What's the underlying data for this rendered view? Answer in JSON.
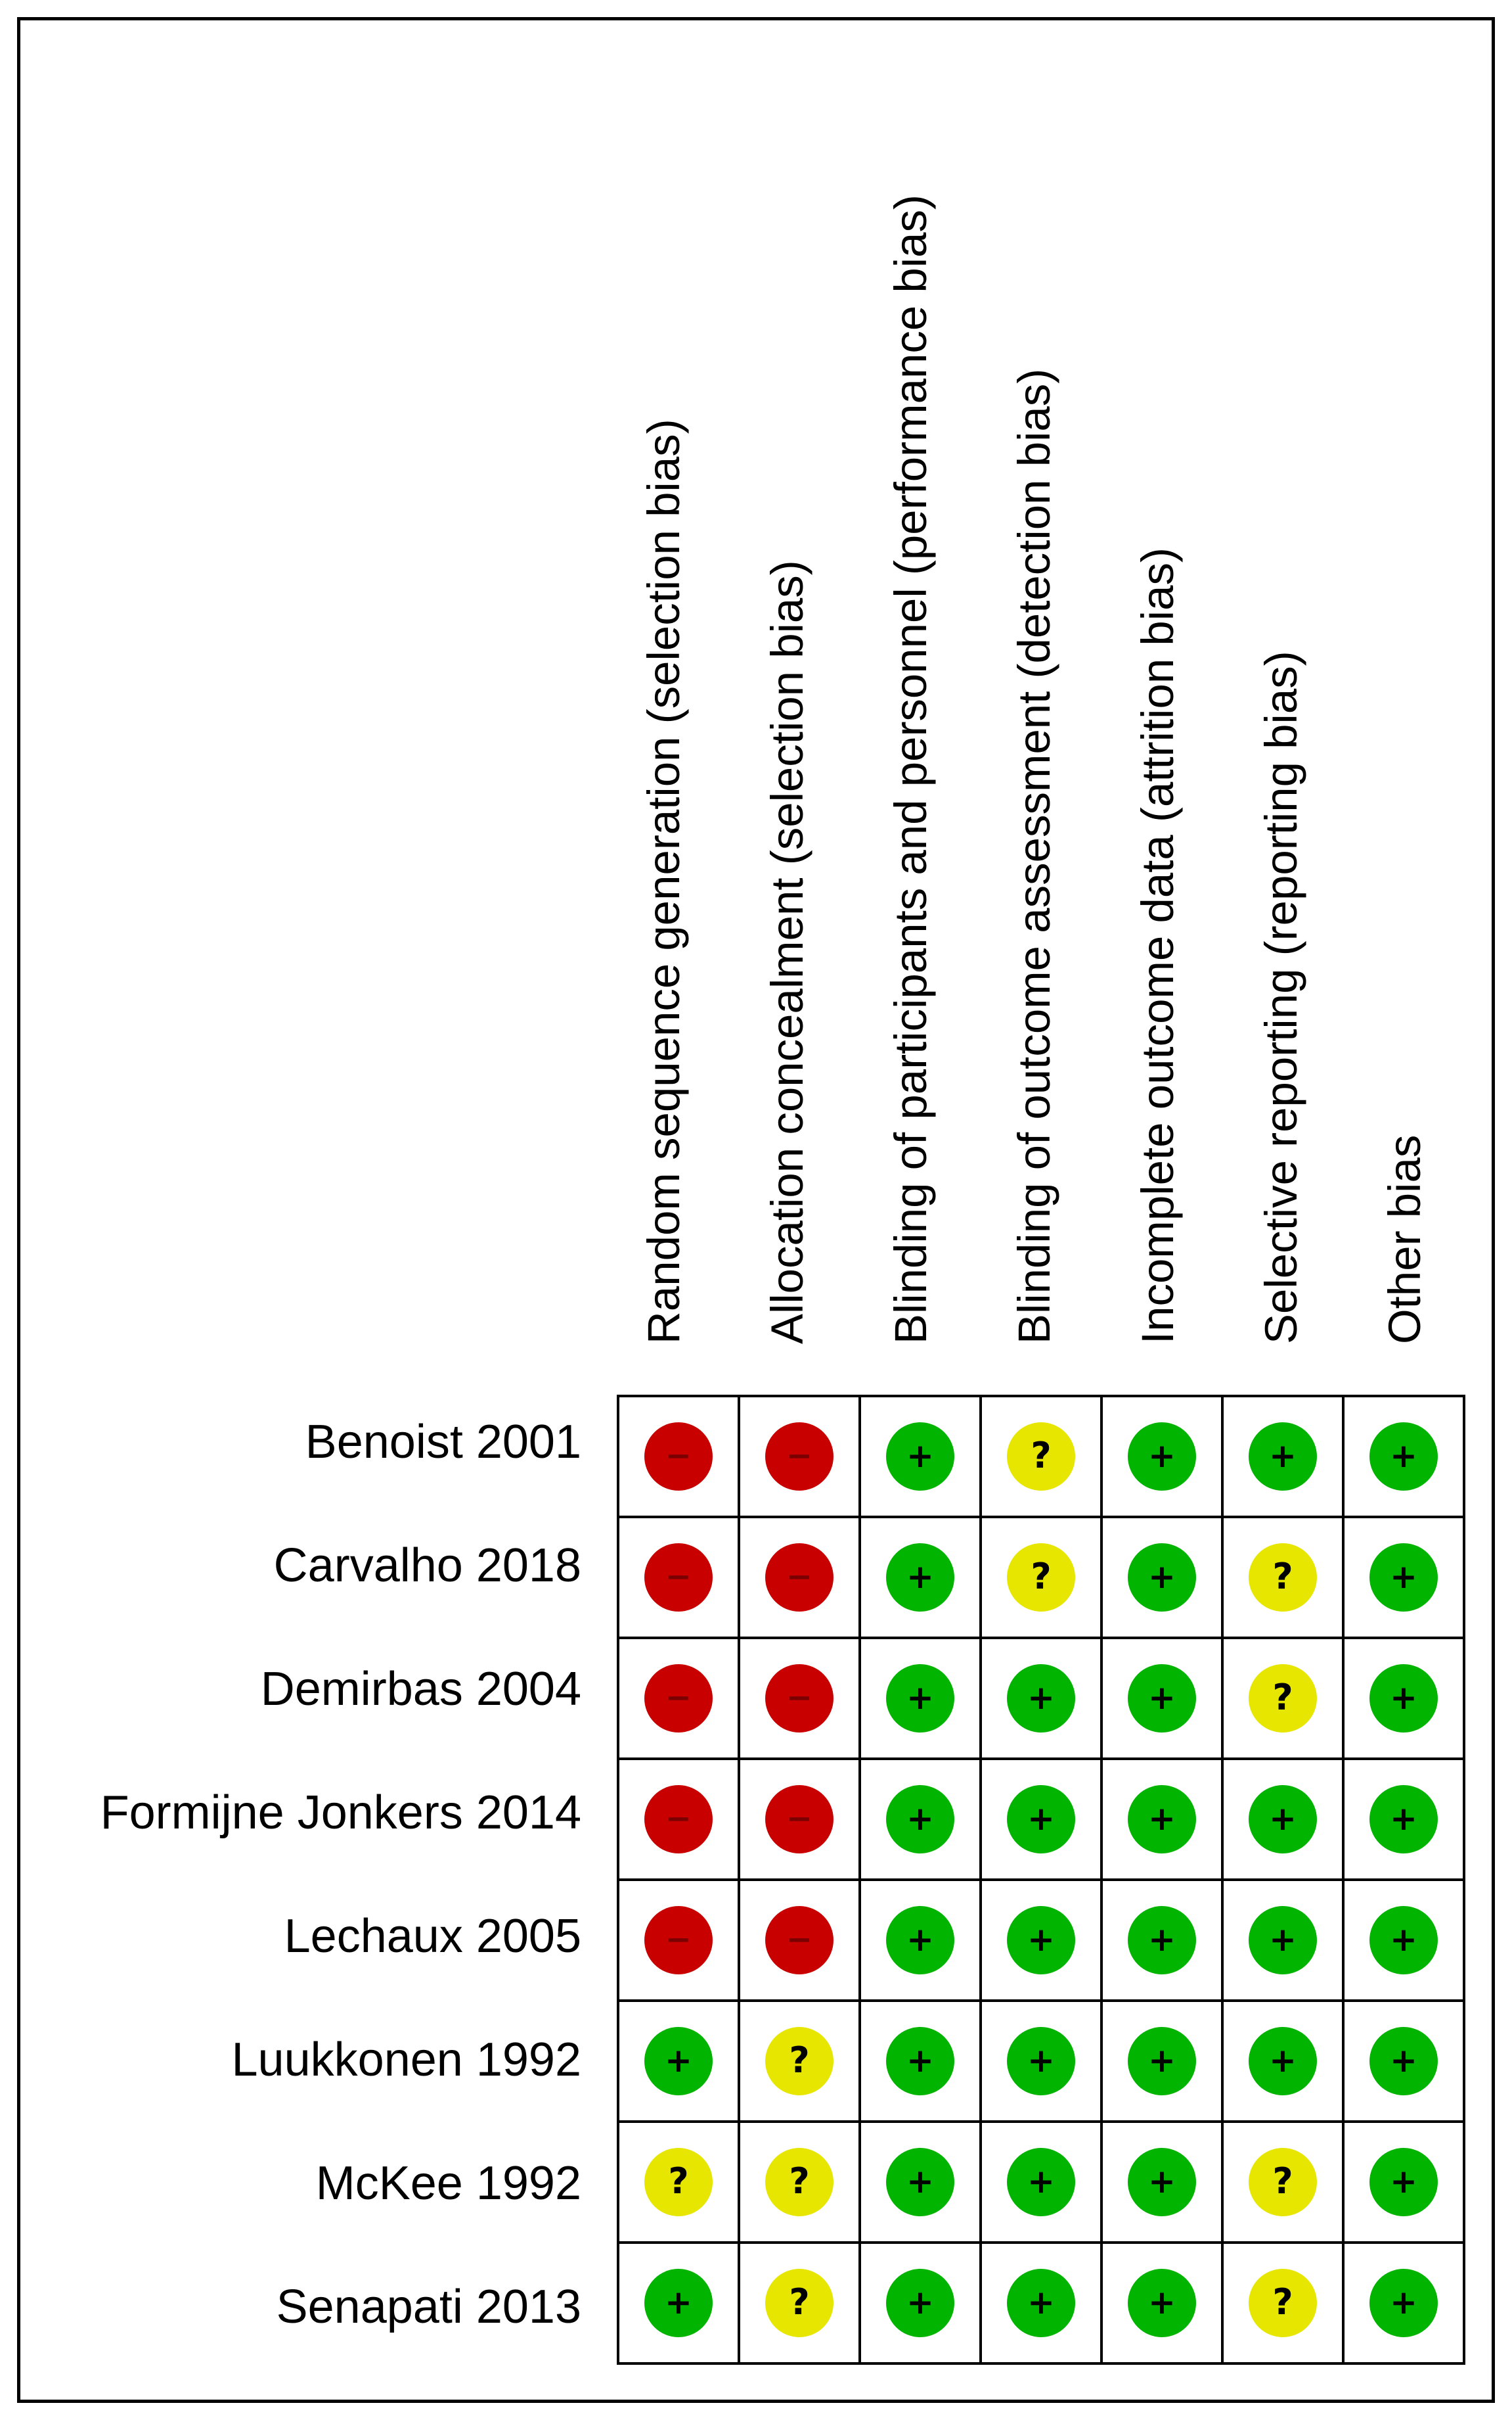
{
  "domains": [
    "Random sequence generation (selection bias)",
    "Allocation concealment (selection bias)",
    "Blinding of participants and personnel (performance bias)",
    "Blinding of outcome assessment (detection bias)",
    "Incomplete outcome data (attrition bias)",
    "Selective reporting (reporting bias)",
    "Other bias"
  ],
  "studies": [
    {
      "label": "Benoist 2001",
      "judgements": [
        "high",
        "high",
        "low",
        "unclear",
        "low",
        "low",
        "low"
      ]
    },
    {
      "label": "Carvalho 2018",
      "judgements": [
        "high",
        "high",
        "low",
        "unclear",
        "low",
        "unclear",
        "low"
      ]
    },
    {
      "label": "Demirbas 2004",
      "judgements": [
        "high",
        "high",
        "low",
        "low",
        "low",
        "unclear",
        "low"
      ]
    },
    {
      "label": "Formijne Jonkers 2014",
      "judgements": [
        "high",
        "high",
        "low",
        "low",
        "low",
        "low",
        "low"
      ]
    },
    {
      "label": "Lechaux 2005",
      "judgements": [
        "high",
        "high",
        "low",
        "low",
        "low",
        "low",
        "low"
      ]
    },
    {
      "label": "Luukkonen 1992",
      "judgements": [
        "low",
        "unclear",
        "low",
        "low",
        "low",
        "low",
        "low"
      ]
    },
    {
      "label": "McKee 1992",
      "judgements": [
        "unclear",
        "unclear",
        "low",
        "low",
        "low",
        "unclear",
        "low"
      ]
    },
    {
      "label": "Senapati 2013",
      "judgements": [
        "low",
        "unclear",
        "low",
        "low",
        "low",
        "unclear",
        "low"
      ]
    }
  ],
  "legend": {
    "low": {
      "symbol": "+",
      "color": "#00b400"
    },
    "unclear": {
      "symbol": "?",
      "color": "#e6e600"
    },
    "high": {
      "symbol": "−",
      "color": "#c80000"
    }
  }
}
